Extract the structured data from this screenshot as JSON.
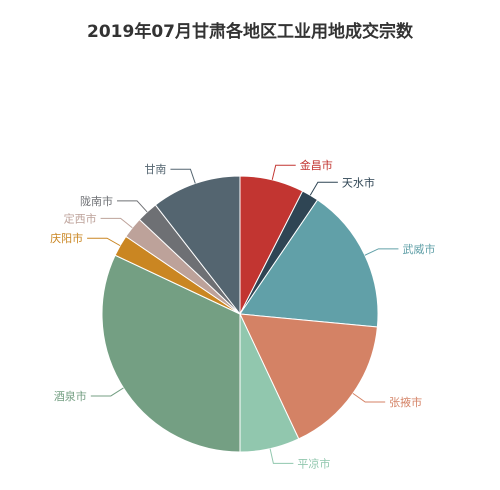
{
  "chart_data": {
    "type": "pie",
    "title": "2019年07月甘肃各地区工业用地成交宗数",
    "slices": [
      {
        "label": "金昌市",
        "value": 7.5,
        "color": "#c23531"
      },
      {
        "label": "天水市",
        "value": 2.0,
        "color": "#2f4554"
      },
      {
        "label": "武威市",
        "value": 17.0,
        "color": "#61a0a8"
      },
      {
        "label": "张掖市",
        "value": 16.5,
        "color": "#d48265"
      },
      {
        "label": "平凉市",
        "value": 7.0,
        "color": "#91c7ae"
      },
      {
        "label": "酒泉市",
        "value": 32.0,
        "color": "#749f83"
      },
      {
        "label": "庆阳市",
        "value": 2.5,
        "color": "#ca8622"
      },
      {
        "label": "定西市",
        "value": 2.5,
        "color": "#bda29a"
      },
      {
        "label": "陇南市",
        "value": 2.5,
        "color": "#6e7074"
      },
      {
        "label": "甘南",
        "value": 10.5,
        "color": "#546570"
      }
    ]
  }
}
